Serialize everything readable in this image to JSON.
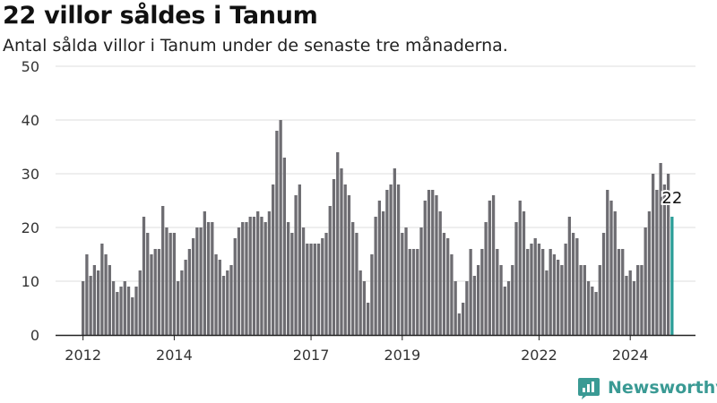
{
  "header": {
    "title": "22 villor såldes i Tanum",
    "subtitle": "Antal sålda villor i Tanum under de senaste tre månaderna."
  },
  "brand": {
    "name": "Newsworthy",
    "icon": "newsworthy-logo-icon",
    "color": "#3a9a94"
  },
  "chart_data": {
    "type": "bar",
    "title": "22 villor såldes i Tanum",
    "subtitle": "Antal sålda villor i Tanum under de senaste tre månaderna.",
    "xlabel": "",
    "ylabel": "",
    "ylim": [
      0,
      50
    ],
    "yticks": [
      0,
      10,
      20,
      30,
      40,
      50
    ],
    "x_tick_labels": [
      "2012",
      "2014",
      "2017",
      "2019",
      "2022",
      "2024"
    ],
    "x_tick_years": [
      2012,
      2014,
      2017,
      2019,
      2022,
      2024
    ],
    "grid": true,
    "bar_color": "#6e6d72",
    "highlight_color": "#2b9e98",
    "highlight_label": "22",
    "start": "2012-01",
    "end": "2024-12",
    "periods": 156,
    "values": [
      10,
      15,
      11,
      13,
      12,
      17,
      15,
      13,
      10,
      8,
      9,
      10,
      9,
      7,
      9,
      12,
      22,
      19,
      15,
      16,
      16,
      24,
      20,
      19,
      19,
      10,
      12,
      14,
      16,
      18,
      20,
      20,
      23,
      21,
      21,
      15,
      14,
      11,
      12,
      13,
      18,
      20,
      21,
      21,
      22,
      22,
      23,
      22,
      21,
      23,
      28,
      38,
      40,
      33,
      21,
      19,
      26,
      28,
      20,
      17,
      17,
      17,
      17,
      18,
      19,
      24,
      29,
      34,
      31,
      28,
      26,
      21,
      19,
      12,
      10,
      6,
      15,
      22,
      25,
      23,
      27,
      28,
      31,
      28,
      19,
      20,
      16,
      16,
      16,
      20,
      25,
      27,
      27,
      26,
      23,
      19,
      18,
      15,
      10,
      4,
      6,
      10,
      16,
      11,
      13,
      16,
      21,
      25,
      26,
      16,
      13,
      9,
      10,
      13,
      21,
      25,
      23,
      16,
      17,
      18,
      17,
      16,
      12,
      16,
      15,
      14,
      13,
      17,
      22,
      19,
      18,
      13,
      13,
      10,
      9,
      8,
      13,
      19,
      27,
      25,
      23,
      16,
      16,
      11,
      12,
      10,
      13,
      13,
      20,
      23,
      30,
      27,
      32,
      28,
      30,
      22
    ]
  }
}
